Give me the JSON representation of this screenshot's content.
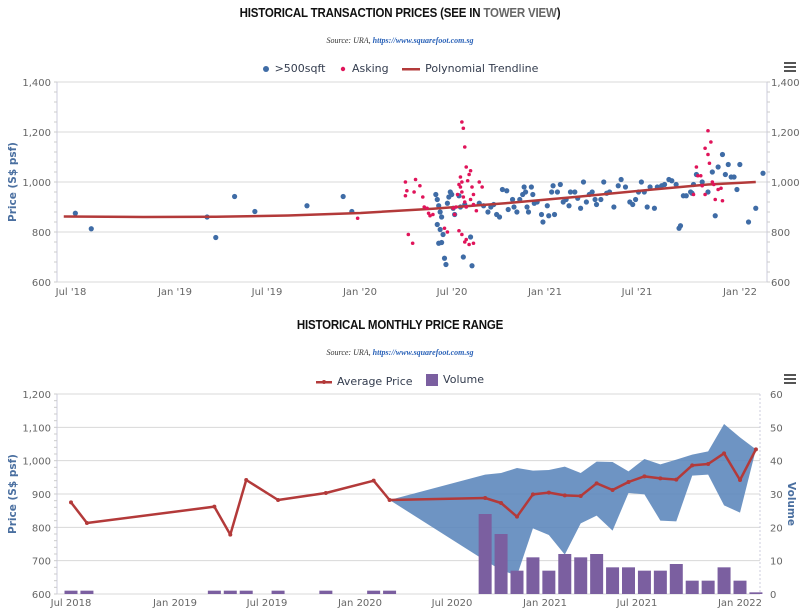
{
  "charts": {
    "top": {
      "title_main": "HISTORICAL TRANSACTION PRICES (SEE IN ",
      "title_link": "TOWER VIEW",
      "title_end": ")",
      "source_label": "Source: URA, ",
      "source_link": "https://www.squarefoot.com.sg",
      "legend": [
        ">500sqft",
        "Asking",
        "Polynomial Trendline"
      ]
    },
    "bottom": {
      "title": "HISTORICAL MONTHLY PRICE RANGE",
      "source_label": "Source: URA, ",
      "source_link": "https://www.squarefoot.com.sg",
      "legend": [
        "Average Price",
        "Volume"
      ]
    }
  },
  "colors": {
    "sqft": "#3f6ca6",
    "asking": "#e0145a",
    "trend": "#b33a3a",
    "range": "#5e88bd",
    "volume": "#7b5fa0",
    "grid": "#d8d8d8",
    "axis_title": "#4a6fa0"
  },
  "chart_data": [
    {
      "type": "scatter",
      "title": "HISTORICAL TRANSACTION PRICES (SEE IN TOWER VIEW)",
      "subtitle": "Source: URA, https://www.squarefoot.com.sg",
      "xlabel": "",
      "ylabel": "Price (S$ psf)",
      "ylim": [
        600,
        1400
      ],
      "yticks": [
        "600",
        "800",
        "1,000",
        "1,200",
        "1,400"
      ],
      "xtick_labels": [
        "Jul '18",
        "Jan '19",
        "Jul '19",
        "Jan '20",
        "Jul '20",
        "Jan '21",
        "Jul '21",
        "Jan '22"
      ],
      "x_unit": "months since Jul 2018",
      "xlim": [
        -0.9,
        43.5
      ],
      "legend_position": "top-center",
      "grid": true,
      "series": [
        {
          "name": ">500sqft",
          "points": [
            [
              0.3,
              875
            ],
            [
              1.4,
              813
            ],
            [
              9.4,
              860
            ],
            [
              10,
              778
            ],
            [
              11.3,
              942
            ],
            [
              12.7,
              882
            ],
            [
              16.3,
              905
            ],
            [
              18.8,
              942
            ],
            [
              19.4,
              882
            ],
            [
              25.2,
              950
            ],
            [
              25.3,
              930
            ],
            [
              25.4,
              905
            ],
            [
              25.5,
              880
            ],
            [
              25.6,
              860
            ],
            [
              25.3,
              830
            ],
            [
              25.5,
              810
            ],
            [
              25.7,
              790
            ],
            [
              25.4,
              755
            ],
            [
              25.6,
              758
            ],
            [
              25.8,
              695
            ],
            [
              25.9,
              670
            ],
            [
              26.1,
              940
            ],
            [
              26.0,
              915
            ],
            [
              26.3,
              950
            ],
            [
              26.2,
              960
            ],
            [
              26.4,
              895
            ],
            [
              26.5,
              870
            ],
            [
              26.8,
              945
            ],
            [
              26.9,
              900
            ],
            [
              27.2,
              910
            ],
            [
              27.1,
              700
            ],
            [
              27.7,
              665
            ],
            [
              27.6,
              780
            ],
            [
              28.2,
              915
            ],
            [
              28.5,
              905
            ],
            [
              28.8,
              880
            ],
            [
              29.0,
              900
            ],
            [
              29.2,
              910
            ],
            [
              29.4,
              870
            ],
            [
              29.6,
              860
            ],
            [
              29.8,
              970
            ],
            [
              30.1,
              965
            ],
            [
              30.2,
              890
            ],
            [
              30.5,
              930
            ],
            [
              30.6,
              900
            ],
            [
              30.8,
              880
            ],
            [
              31.0,
              930
            ],
            [
              31.2,
              950
            ],
            [
              31.3,
              980
            ],
            [
              31.4,
              960
            ],
            [
              31.5,
              900
            ],
            [
              31.6,
              880
            ],
            [
              31.8,
              980
            ],
            [
              31.9,
              950
            ],
            [
              32.0,
              915
            ],
            [
              32.2,
              920
            ],
            [
              32.5,
              870
            ],
            [
              32.6,
              840
            ],
            [
              32.9,
              905
            ],
            [
              33.0,
              865
            ],
            [
              33.2,
              960
            ],
            [
              33.3,
              985
            ],
            [
              33.4,
              870
            ],
            [
              33.6,
              960
            ],
            [
              33.8,
              990
            ],
            [
              34.0,
              920
            ],
            [
              34.2,
              930
            ],
            [
              34.4,
              905
            ],
            [
              34.5,
              960
            ],
            [
              34.8,
              960
            ],
            [
              35.0,
              935
            ],
            [
              35.2,
              895
            ],
            [
              35.4,
              1000
            ],
            [
              35.6,
              920
            ],
            [
              35.8,
              950
            ],
            [
              36.0,
              960
            ],
            [
              36.2,
              930
            ],
            [
              36.3,
              910
            ],
            [
              36.6,
              930
            ],
            [
              36.8,
              1000
            ],
            [
              37.0,
              955
            ],
            [
              37.2,
              960
            ],
            [
              37.5,
              900
            ],
            [
              37.8,
              985
            ],
            [
              38.0,
              1010
            ],
            [
              38.3,
              980
            ],
            [
              38.6,
              920
            ],
            [
              38.8,
              910
            ],
            [
              39.0,
              930
            ],
            [
              39.2,
              960
            ],
            [
              39.4,
              1000
            ],
            [
              39.6,
              960
            ],
            [
              39.8,
              900
            ],
            [
              40.0,
              980
            ],
            [
              40.3,
              895
            ],
            [
              40.5,
              980
            ],
            [
              40.8,
              985
            ],
            [
              41.0,
              990
            ],
            [
              41.3,
              1010
            ],
            [
              41.5,
              1005
            ],
            [
              41.8,
              990
            ],
            [
              42.0,
              815
            ],
            [
              42.1,
              825
            ],
            [
              42.3,
              945
            ],
            [
              42.5,
              945
            ],
            [
              42.8,
              960
            ],
            [
              43.0,
              990
            ],
            [
              43.2,
              1030
            ],
            [
              42.9,
              955
            ],
            [
              43.6,
              1000
            ],
            [
              44.0,
              960
            ],
            [
              44.3,
              1040
            ],
            [
              44.5,
              865
            ],
            [
              44.7,
              1060
            ],
            [
              45.0,
              1110
            ],
            [
              45.2,
              1030
            ],
            [
              45.4,
              1070
            ],
            [
              45.6,
              1020
            ],
            [
              45.8,
              1020
            ],
            [
              46.0,
              970
            ],
            [
              46.2,
              1070
            ],
            [
              46.8,
              840
            ],
            [
              47.3,
              895
            ],
            [
              47.8,
              1035
            ]
          ]
        },
        {
          "name": "Asking",
          "points": [
            [
              19.8,
              855
            ],
            [
              23.1,
              1000
            ],
            [
              23.2,
              965
            ],
            [
              23.1,
              945
            ],
            [
              23.3,
              790
            ],
            [
              23.6,
              755
            ],
            [
              23.7,
              960
            ],
            [
              23.8,
              1010
            ],
            [
              24.1,
              985
            ],
            [
              24.3,
              940
            ],
            [
              24.4,
              900
            ],
            [
              24.6,
              895
            ],
            [
              24.7,
              875
            ],
            [
              24.8,
              865
            ],
            [
              25.0,
              870
            ],
            [
              25.8,
              815
            ],
            [
              26.0,
              800
            ],
            [
              26.4,
              895
            ],
            [
              26.5,
              870
            ],
            [
              26.6,
              900
            ],
            [
              26.7,
              950
            ],
            [
              26.8,
              990
            ],
            [
              26.9,
              1020
            ],
            [
              27.0,
              1240
            ],
            [
              27.1,
              1215
            ],
            [
              27.2,
              1140
            ],
            [
              27.3,
              1060
            ],
            [
              27.0,
              1000
            ],
            [
              26.9,
              980
            ],
            [
              27.0,
              960
            ],
            [
              27.1,
              940
            ],
            [
              27.2,
              920
            ],
            [
              27.3,
              900
            ],
            [
              27.4,
              1005
            ],
            [
              27.5,
              1030
            ],
            [
              27.6,
              1045
            ],
            [
              27.7,
              980
            ],
            [
              27.8,
              950
            ],
            [
              27.6,
              930
            ],
            [
              27.8,
              910
            ],
            [
              28.0,
              885
            ],
            [
              26.8,
              805
            ],
            [
              27.0,
              790
            ],
            [
              27.2,
              760
            ],
            [
              27.5,
              750
            ],
            [
              27.8,
              755
            ],
            [
              27.3,
              770
            ],
            [
              28.2,
              1000
            ],
            [
              28.4,
              980
            ],
            [
              43.0,
              950
            ],
            [
              43.2,
              1060
            ],
            [
              43.3,
              1025
            ],
            [
              43.5,
              1025
            ],
            [
              43.6,
              985
            ],
            [
              43.8,
              950
            ],
            [
              43.8,
              1135
            ],
            [
              44.0,
              1205
            ],
            [
              44.2,
              1160
            ],
            [
              44.1,
              1075
            ],
            [
              44.0,
              1110
            ],
            [
              44.3,
              1000
            ],
            [
              44.4,
              990
            ],
            [
              44.5,
              930
            ],
            [
              44.7,
              970
            ],
            [
              44.9,
              975
            ],
            [
              45.0,
              925
            ]
          ]
        },
        {
          "name": "Polynomial Trendline",
          "points": [
            [
              -0.5,
              862
            ],
            [
              5,
              860
            ],
            [
              10,
              861
            ],
            [
              15,
              866
            ],
            [
              20,
              876
            ],
            [
              25,
              893
            ],
            [
              30,
              915
            ],
            [
              35,
              941
            ],
            [
              40,
              969
            ],
            [
              44,
              990
            ],
            [
              47.3,
              1000
            ]
          ]
        }
      ]
    },
    {
      "type": "line",
      "title": "HISTORICAL MONTHLY PRICE RANGE",
      "subtitle": "Source: URA, https://www.squarefoot.com.sg",
      "xlabel": "",
      "ylabel": "Price (S$ psf)",
      "ylabel_right": "Volume",
      "ylim": [
        600,
        1200
      ],
      "ylim_right": [
        0,
        60
      ],
      "yticks": [
        "600",
        "700",
        "800",
        "900",
        "1,000",
        "1,100",
        "1,200"
      ],
      "yticks_right": [
        "0",
        "10",
        "20",
        "30",
        "40",
        "50",
        "60"
      ],
      "xtick_labels": [
        "Jul 2018",
        "Jan 2019",
        "Jul 2019",
        "Jan 2020",
        "Jul 2020",
        "Jan 2021",
        "Jul 2021",
        "Jan 2022"
      ],
      "x_unit": "months since Jul 2018",
      "xlim": [
        -0.9,
        43.5
      ],
      "legend_position": "top-center",
      "grid": true,
      "months": [
        "Jul 2018",
        "Aug 2018",
        "Apr 2019",
        "May 2019",
        "Jun 2019",
        "Aug 2019",
        "Nov 2019",
        "Feb 2020",
        "Mar 2020",
        "Sep 2020",
        "Oct 2020",
        "Nov 2020",
        "Dec 2020",
        "Jan 2021",
        "Feb 2021",
        "Mar 2021",
        "Apr 2021",
        "May 2021",
        "Jun 2021",
        "Jul 2021",
        "Aug 2021",
        "Sep 2021",
        "Oct 2021",
        "Nov 2021",
        "Dec 2021",
        "Jan 2022",
        "Feb 2022"
      ],
      "month_index": [
        0,
        1,
        9,
        10,
        11,
        13,
        16,
        19,
        20,
        26,
        27,
        28,
        29,
        30,
        31,
        32,
        33,
        34,
        35,
        36,
        37,
        38,
        39,
        40,
        41,
        42,
        43
      ],
      "series": [
        {
          "name": "Average Price",
          "type": "line",
          "values": [
            875,
            813,
            862,
            778,
            942,
            882,
            903,
            940,
            882,
            888,
            873,
            832,
            899,
            904,
            896,
            894,
            932,
            912,
            936,
            953,
            947,
            943,
            986,
            990,
            1022,
            942,
            1034
          ]
        },
        {
          "name": "Range",
          "type": "arearange",
          "low": [
            875,
            813,
            862,
            778,
            942,
            882,
            903,
            940,
            882,
            700,
            672,
            655,
            797,
            777,
            718,
            812,
            835,
            790,
            903,
            899,
            820,
            818,
            955,
            958,
            866,
            844,
            1034
          ],
          "high": [
            875,
            813,
            862,
            778,
            942,
            882,
            903,
            940,
            882,
            958,
            963,
            978,
            970,
            972,
            982,
            963,
            997,
            996,
            968,
            1005,
            989,
            1003,
            1018,
            1028,
            1110,
            1070,
            1034
          ]
        },
        {
          "name": "Volume",
          "type": "bar",
          "axis": "right",
          "values": [
            1,
            1,
            1,
            1,
            1,
            1,
            1,
            1,
            1,
            24,
            18,
            7,
            11,
            7,
            12,
            11,
            12,
            8,
            8,
            7,
            7,
            9,
            4,
            4,
            8,
            4,
            0.5
          ]
        }
      ]
    }
  ]
}
